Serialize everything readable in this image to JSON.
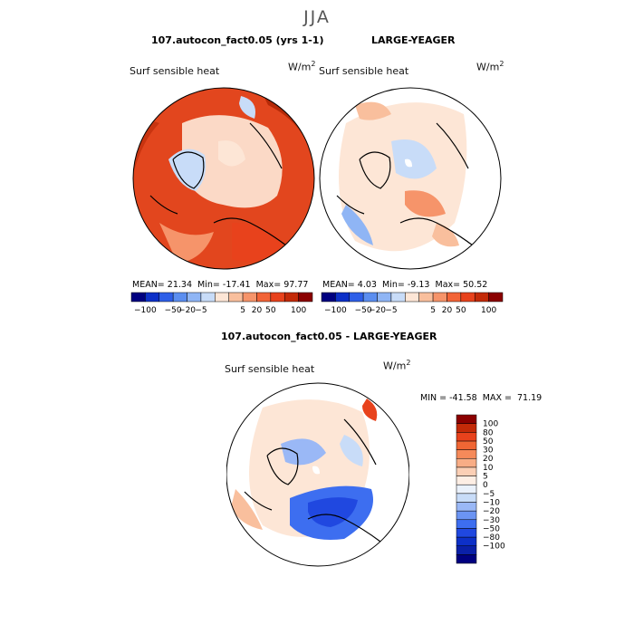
{
  "figure": {
    "season": "JJA",
    "units_base": "W/m",
    "units_exp": "2"
  },
  "panels": [
    {
      "title": "107.autocon_fact0.05 (yrs 1-1)",
      "variable": "Surf sensible heat",
      "mean_label": "MEAN=",
      "mean": "21.34",
      "min_label": "Min=",
      "min": "-17.41",
      "max_label": "Max=",
      "max": "97.77",
      "palette": "warm-strong"
    },
    {
      "title": "LARGE-YEAGER",
      "variable": "Surf sensible heat",
      "mean_label": "MEAN=",
      "mean": "4.03",
      "min_label": "Min=",
      "min": "-9.13",
      "max_label": "Max=",
      "max": "50.52",
      "palette": "mild"
    },
    {
      "title": "107.autocon_fact0.05 - LARGE-YEAGER",
      "variable": "Surf sensible heat",
      "minmax": "MIN = -41.58  MAX =  71.19",
      "palette": "diff"
    }
  ],
  "colorbar_top": {
    "colors": [
      "#000080",
      "#0d30c8",
      "#2e5fe8",
      "#5b8ef0",
      "#8fb5f5",
      "#c8dcf8",
      "#fde6d6",
      "#f9bf9d",
      "#f6946a",
      "#f26437",
      "#e8421c",
      "#c32a08",
      "#8b0000"
    ],
    "tick_labels": [
      "−100",
      "−50",
      "−20",
      "−5",
      "5",
      "20",
      "50",
      "100"
    ]
  },
  "colorbar_diff": {
    "colors": [
      "#000080",
      "#0a20a8",
      "#0d30c8",
      "#2048e0",
      "#3d6ef0",
      "#6b94f3",
      "#9ab8f6",
      "#c8dcf8",
      "#eaf1fb",
      "#fdeee4",
      "#fbcfb5",
      "#f8ad86",
      "#f58a5a",
      "#f06634",
      "#e8421c",
      "#c32a08",
      "#8b0000"
    ],
    "tick_labels": [
      "100",
      "80",
      "50",
      "30",
      "20",
      "10",
      "5",
      "0",
      "−5",
      "−10",
      "−20",
      "−30",
      "−50",
      "−80",
      "−100"
    ]
  }
}
